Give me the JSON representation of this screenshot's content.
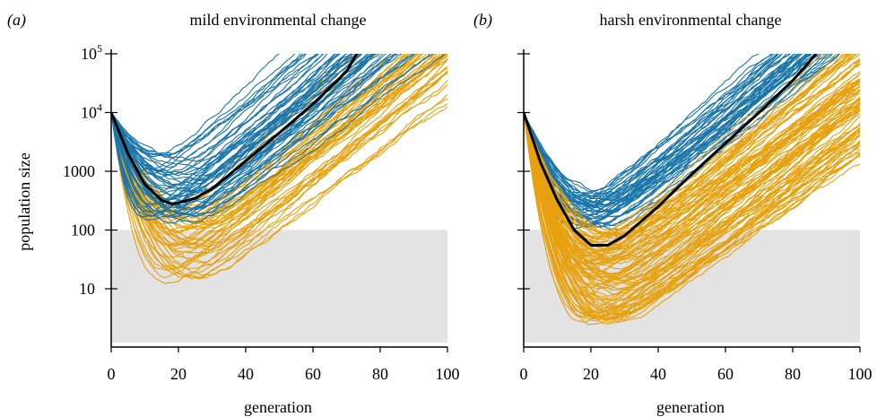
{
  "figure": {
    "ylabel": "population size",
    "xlabel": "generation",
    "colors": {
      "blue": "#1a75aa",
      "orange": "#e8a10e",
      "mean": "#000000",
      "shade": "#e3e3e3"
    }
  },
  "chart_data": [
    {
      "type": "line",
      "panel_label": "(a)",
      "title": "mild environmental change",
      "xlabel": "generation",
      "ylabel": "population size",
      "xlim": [
        0,
        100
      ],
      "ylim_log10": [
        0,
        5
      ],
      "log_scale_y": true,
      "x_ticks": [
        0,
        20,
        40,
        60,
        80,
        100
      ],
      "y_ticks": [
        {
          "log10": 5,
          "label": "10",
          "sup": "5"
        },
        {
          "log10": 4,
          "label": "10",
          "sup": "4"
        },
        {
          "log10": 3,
          "label": "1000"
        },
        {
          "log10": 2,
          "label": "100"
        },
        {
          "log10": 1,
          "label": "10"
        }
      ],
      "shaded_band": {
        "y_from": 1,
        "y_to": 100
      },
      "series": [
        {
          "role": "mean",
          "color": "#000000",
          "x": [
            0,
            5,
            10,
            15,
            18,
            20,
            25,
            30,
            40,
            50,
            60,
            70,
            73
          ],
          "y": [
            10000,
            2000,
            600,
            320,
            280,
            290,
            350,
            500,
            1500,
            4500,
            14000,
            50000,
            100000
          ]
        },
        {
          "role": "surviving-trajectories",
          "color": "#1a75aa",
          "count": 55,
          "trough_log10_range": [
            2.05,
            3.35
          ],
          "trough_gen_range": [
            10,
            28
          ],
          "slope_log10_per_gen_range": [
            0.042,
            0.056
          ]
        },
        {
          "role": "declining-trajectories",
          "color": "#e8a10e",
          "count": 50,
          "trough_log10_range": [
            1.1,
            2.4
          ],
          "trough_gen_range": [
            15,
            30
          ],
          "slope_log10_per_gen_range": [
            0.04,
            0.054
          ]
        }
      ]
    },
    {
      "type": "line",
      "panel_label": "(b)",
      "title": "harsh environmental change",
      "xlabel": "generation",
      "ylabel": "",
      "xlim": [
        0,
        100
      ],
      "ylim_log10": [
        0,
        5
      ],
      "log_scale_y": true,
      "x_ticks": [
        0,
        20,
        40,
        60,
        80,
        100
      ],
      "y_ticks": [
        {
          "log10": 5
        },
        {
          "log10": 4
        },
        {
          "log10": 3
        },
        {
          "log10": 2
        },
        {
          "log10": 1
        }
      ],
      "shaded_band": {
        "y_from": 1,
        "y_to": 100
      },
      "series": [
        {
          "role": "mean",
          "color": "#000000",
          "x": [
            0,
            5,
            10,
            15,
            20,
            25,
            30,
            40,
            50,
            60,
            70,
            80,
            87
          ],
          "y": [
            10000,
            1400,
            320,
            100,
            55,
            55,
            80,
            250,
            900,
            3000,
            10000,
            35000,
            100000
          ]
        },
        {
          "role": "surviving-trajectories",
          "color": "#1a75aa",
          "count": 45,
          "trough_log10_range": [
            2.0,
            2.65
          ],
          "trough_gen_range": [
            15,
            28
          ],
          "slope_log10_per_gen_range": [
            0.043,
            0.053
          ]
        },
        {
          "role": "declining-trajectories",
          "color": "#e8a10e",
          "count": 95,
          "trough_log10_range": [
            0.4,
            1.95
          ],
          "trough_gen_range": [
            18,
            32
          ],
          "slope_log10_per_gen_range": [
            0.038,
            0.05
          ]
        }
      ]
    }
  ]
}
